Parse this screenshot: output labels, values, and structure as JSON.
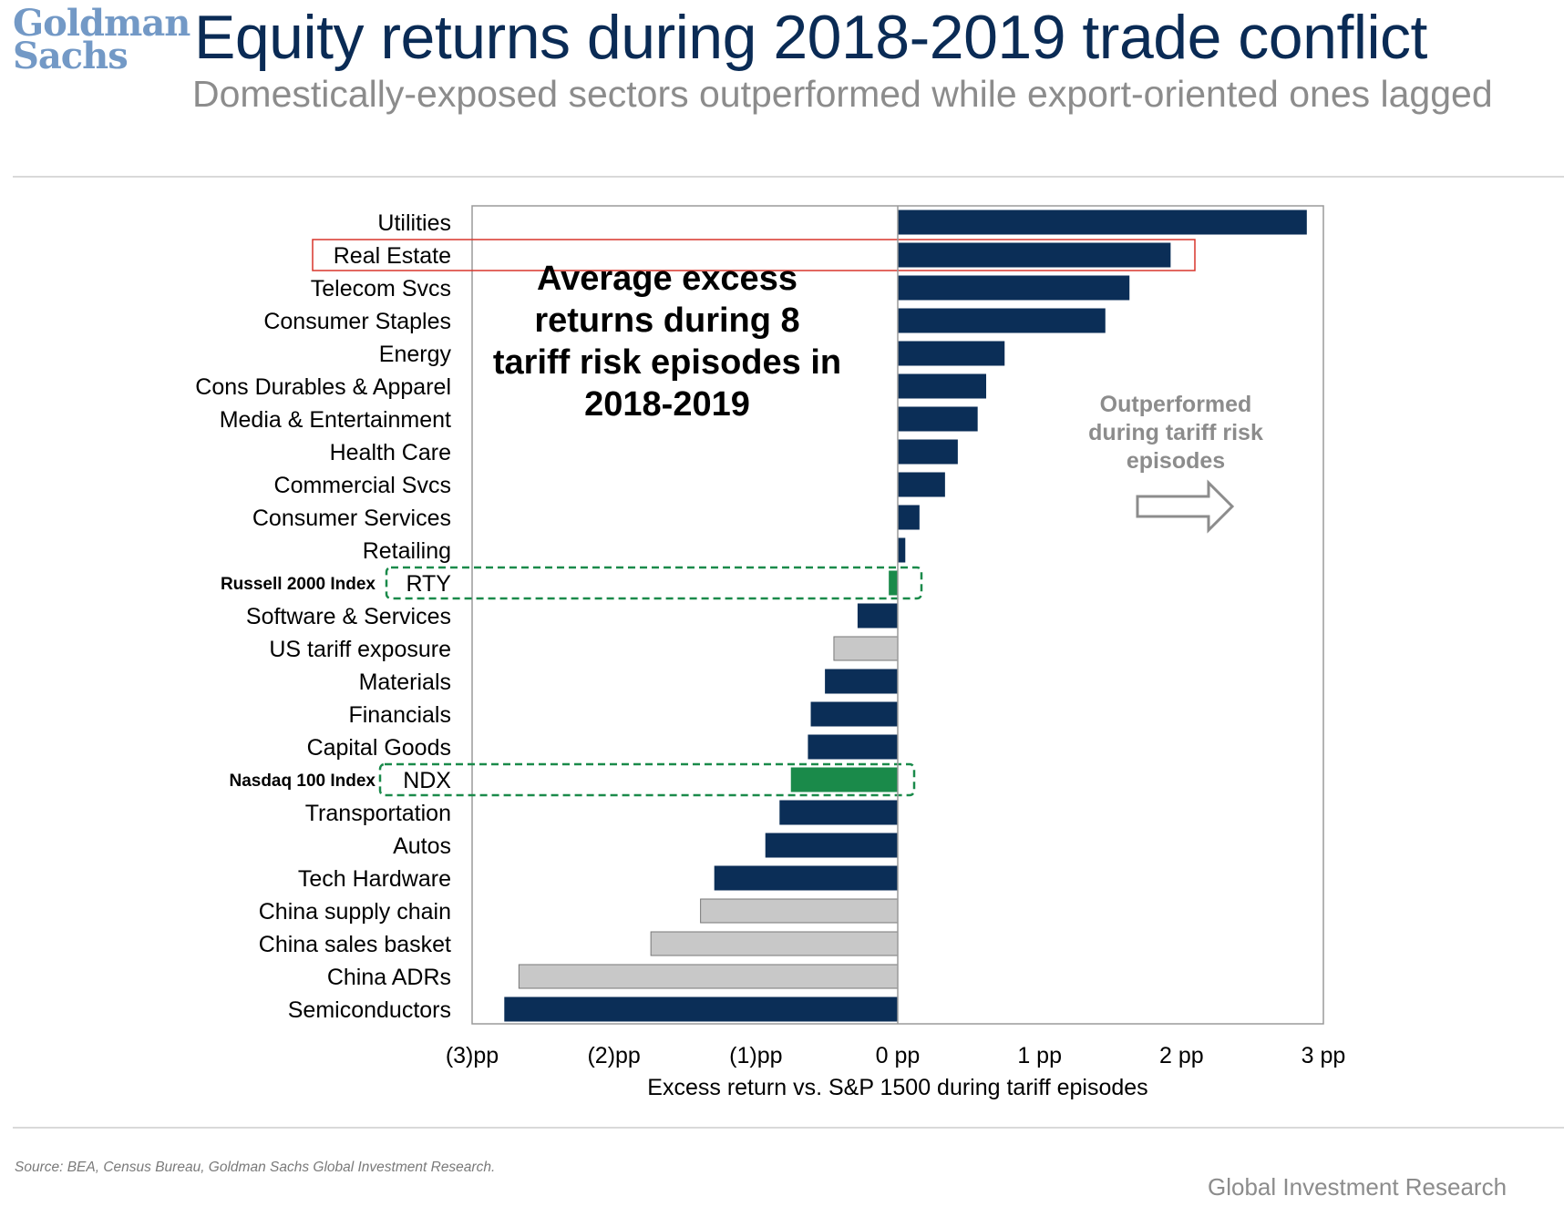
{
  "header": {
    "logo_line1": "Goldman",
    "logo_line2": "Sachs",
    "title": "Equity returns during 2018-2019 trade conflict",
    "subtitle": "Domestically-exposed sectors outperformed while export-oriented ones lagged"
  },
  "footer": {
    "source": "Source: BEA, Census Bureau, Goldman Sachs Global Investment Research.",
    "brand": "Global Investment Research"
  },
  "colors": {
    "sector": "#0b2e57",
    "index": "#1a8a4a",
    "basket": "#c8c8c8",
    "highlight_red": "#d9352b",
    "highlight_green": "#1a8a4a"
  },
  "chart_data": {
    "type": "bar",
    "orientation": "horizontal",
    "xlabel": "Excess return vs. S&P 1500 during tariff episodes",
    "xlim": [
      -3,
      3
    ],
    "x_ticks": [
      -3,
      -2,
      -1,
      0,
      1,
      2,
      3
    ],
    "x_tick_labels": [
      "(3)pp",
      "(2)pp",
      "(1)pp",
      "0 pp",
      "1 pp",
      "2 pp",
      "3 pp"
    ],
    "grid": false,
    "annotation": [
      "Average excess",
      "returns during 8",
      "tariff risk episodes in",
      "2018-2019"
    ],
    "right_note": [
      "Outperformed",
      "during tariff risk",
      "episodes"
    ],
    "right_note_icon": "arrow-right-icon",
    "categories": [
      {
        "label": "Utilities",
        "value": 2.88,
        "kind": "sector"
      },
      {
        "label": "Real Estate",
        "value": 1.92,
        "kind": "sector",
        "highlight": "red"
      },
      {
        "label": "Telecom Svcs",
        "value": 1.63,
        "kind": "sector"
      },
      {
        "label": "Consumer Staples",
        "value": 1.46,
        "kind": "sector"
      },
      {
        "label": "Energy",
        "value": 0.75,
        "kind": "sector"
      },
      {
        "label": "Cons Durables & Apparel",
        "value": 0.62,
        "kind": "sector"
      },
      {
        "label": "Media & Entertainment",
        "value": 0.56,
        "kind": "sector"
      },
      {
        "label": "Health Care",
        "value": 0.42,
        "kind": "sector"
      },
      {
        "label": "Commercial Svcs",
        "value": 0.33,
        "kind": "sector"
      },
      {
        "label": "Consumer Services",
        "value": 0.15,
        "kind": "sector"
      },
      {
        "label": "Retailing",
        "value": 0.05,
        "kind": "sector"
      },
      {
        "label": "RTY",
        "value": -0.06,
        "kind": "index",
        "highlight": "green",
        "index_name": "Russell 2000 Index"
      },
      {
        "label": "Software & Services",
        "value": -0.28,
        "kind": "sector"
      },
      {
        "label": "US tariff exposure",
        "value": -0.45,
        "kind": "basket"
      },
      {
        "label": "Materials",
        "value": -0.51,
        "kind": "sector"
      },
      {
        "label": "Financials",
        "value": -0.61,
        "kind": "sector"
      },
      {
        "label": "Capital Goods",
        "value": -0.63,
        "kind": "sector"
      },
      {
        "label": "NDX",
        "value": -0.75,
        "kind": "index",
        "highlight": "green",
        "index_name": "Nasdaq 100 Index"
      },
      {
        "label": "Transportation",
        "value": -0.83,
        "kind": "sector"
      },
      {
        "label": "Autos",
        "value": -0.93,
        "kind": "sector"
      },
      {
        "label": "Tech Hardware",
        "value": -1.29,
        "kind": "sector"
      },
      {
        "label": "China supply chain",
        "value": -1.39,
        "kind": "basket"
      },
      {
        "label": "China sales basket",
        "value": -1.74,
        "kind": "basket"
      },
      {
        "label": "China ADRs",
        "value": -2.67,
        "kind": "basket"
      },
      {
        "label": "Semiconductors",
        "value": -2.77,
        "kind": "sector"
      }
    ]
  }
}
